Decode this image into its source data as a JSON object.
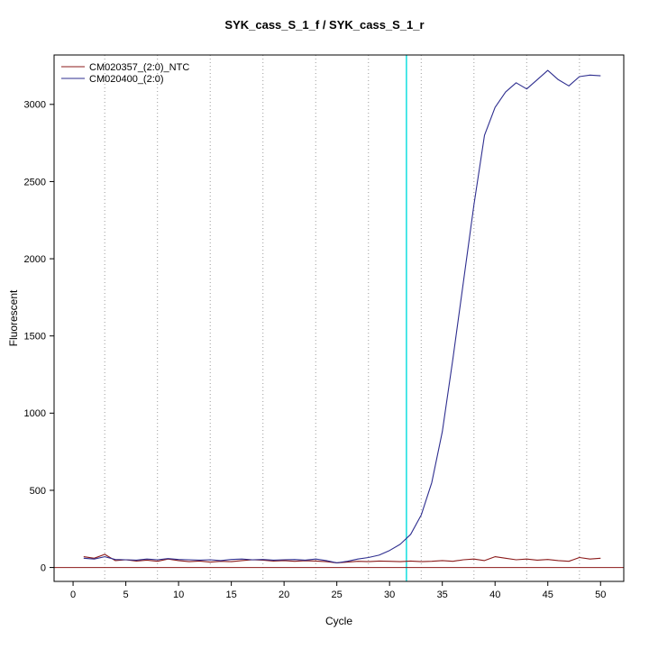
{
  "title": "SYK_cass_S_1_f / SYK_cass_S_1_r",
  "chart_data": {
    "type": "line",
    "title": "SYK_cass_S_1_f / SYK_cass_S_1_r",
    "xlabel": "Cycle",
    "ylabel": "Fluorescent",
    "xlim": [
      -1.8,
      52.2
    ],
    "ylim": [
      -90,
      3320
    ],
    "x_ticks": [
      0,
      5,
      10,
      15,
      20,
      25,
      30,
      35,
      40,
      45,
      50
    ],
    "y_ticks": [
      0,
      500,
      1000,
      1500,
      2000,
      2500,
      3000
    ],
    "grid_x": [
      3,
      8,
      13,
      18,
      23,
      28,
      33,
      38,
      43,
      48
    ],
    "threshold_cycle": 31.6,
    "baseline_value": 0,
    "legend_position": "top-left",
    "colors": {
      "ntc": "#8b1a1a",
      "sample": "#2e2e8f",
      "threshold_line": "#00dcdc",
      "baseline": "#8b1a1a",
      "grid": "#9a9a9a",
      "axis": "#000000"
    },
    "x": [
      1,
      2,
      3,
      4,
      5,
      6,
      7,
      8,
      9,
      10,
      11,
      12,
      13,
      14,
      15,
      16,
      17,
      18,
      19,
      20,
      21,
      22,
      23,
      24,
      25,
      26,
      27,
      28,
      29,
      30,
      31,
      32,
      33,
      34,
      35,
      36,
      37,
      38,
      39,
      40,
      41,
      42,
      43,
      44,
      45,
      46,
      47,
      48,
      49,
      50
    ],
    "series": [
      {
        "name": "CM020357_(2:0)_NTC",
        "color_key": "ntc",
        "values": [
          70,
          60,
          85,
          45,
          50,
          42,
          48,
          40,
          55,
          45,
          38,
          42,
          35,
          40,
          38,
          45,
          50,
          48,
          42,
          45,
          40,
          44,
          42,
          38,
          30,
          35,
          40,
          38,
          42,
          40,
          38,
          42,
          38,
          40,
          45,
          40,
          50,
          55,
          45,
          70,
          60,
          50,
          55,
          48,
          52,
          45,
          40,
          65,
          55,
          60
        ]
      },
      {
        "name": "CM020400_(2:0)",
        "color_key": "sample",
        "values": [
          60,
          55,
          70,
          52,
          50,
          48,
          55,
          50,
          58,
          52,
          50,
          48,
          50,
          45,
          52,
          55,
          50,
          52,
          48,
          50,
          52,
          48,
          55,
          45,
          30,
          40,
          55,
          65,
          80,
          110,
          150,
          215,
          340,
          550,
          880,
          1350,
          1850,
          2350,
          2800,
          2980,
          3080,
          3140,
          3100,
          3160,
          3220,
          3160,
          3120,
          3180,
          3190,
          3185
        ]
      }
    ]
  }
}
